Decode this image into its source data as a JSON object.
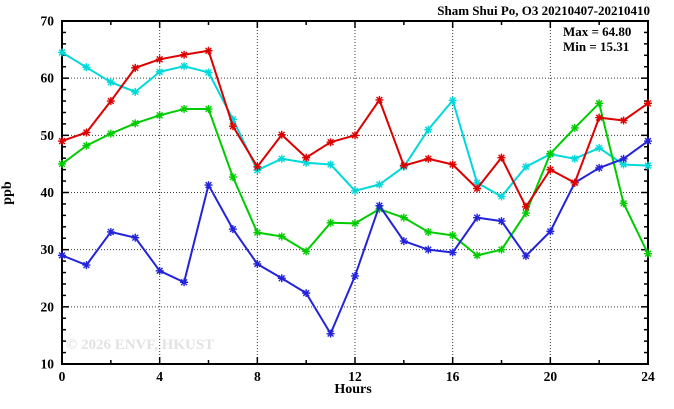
{
  "header": {
    "title": "Sham Shui Po, O3 20210407-20210410"
  },
  "stats": {
    "max_label": "Max = 64.80",
    "min_label": "Min = 15.31"
  },
  "watermark": "© 2026 ENVF, HKUST",
  "axes": {
    "xlabel": "Hours",
    "ylabel": "ppb"
  },
  "chart_data": {
    "type": "line",
    "title": "Sham Shui Po, O3 20210407-20210410",
    "xlabel": "Hours",
    "ylabel": "ppb",
    "xlim": [
      0,
      24
    ],
    "ylim": [
      10,
      70
    ],
    "x_major_ticks": [
      0,
      4,
      8,
      12,
      16,
      20,
      24
    ],
    "x_minor_ticks": [
      2,
      6,
      10,
      14,
      18,
      22
    ],
    "y_major_ticks": [
      10,
      20,
      30,
      40,
      50,
      60,
      70
    ],
    "y_minor_step": 2,
    "grid": "dotted lines at major ticks",
    "legend_position": "none",
    "marker_style": "asterisk",
    "annotations": [
      "Max = 64.80",
      "Min = 15.31"
    ],
    "x": [
      0,
      1,
      2,
      3,
      4,
      5,
      6,
      7,
      8,
      9,
      10,
      11,
      12,
      13,
      14,
      15,
      16,
      17,
      18,
      19,
      20,
      21,
      22,
      23,
      24
    ],
    "series": [
      {
        "name": "cyan-line",
        "color": "#00d9d9",
        "values": [
          64.5,
          61.9,
          59.3,
          57.6,
          61.1,
          62.1,
          61.0,
          52.8,
          43.9,
          45.9,
          45.2,
          44.9,
          40.3,
          41.4,
          44.5,
          51.0,
          56.1,
          41.7,
          39.3,
          44.5,
          46.7,
          45.9,
          47.8,
          44.9,
          44.7
        ]
      },
      {
        "name": "green-line",
        "color": "#00cc00",
        "values": [
          45.0,
          48.2,
          50.3,
          52.1,
          53.5,
          54.6,
          54.6,
          42.7,
          33.0,
          32.3,
          29.7,
          34.7,
          34.6,
          37.1,
          35.6,
          33.1,
          32.5,
          29.0,
          30.0,
          36.4,
          46.8,
          51.3,
          55.6,
          38.1,
          29.3
        ]
      },
      {
        "name": "blue-line",
        "color": "#2323d9",
        "values": [
          29.0,
          27.3,
          33.1,
          32.1,
          26.3,
          24.3,
          41.3,
          33.6,
          27.5,
          25.0,
          22.4,
          15.31,
          25.4,
          37.7,
          31.5,
          30.0,
          29.5,
          35.6,
          35.0,
          28.9,
          33.2,
          41.7,
          44.3,
          45.9,
          49.0
        ]
      },
      {
        "name": "red-line",
        "color": "#dd0000",
        "values": [
          49.0,
          50.5,
          56.0,
          61.8,
          63.3,
          64.1,
          64.8,
          51.6,
          44.5,
          50.1,
          46.1,
          48.8,
          50.0,
          56.2,
          44.7,
          45.9,
          44.9,
          40.7,
          46.1,
          37.5,
          44.0,
          41.7,
          53.1,
          52.6,
          55.6
        ]
      }
    ]
  }
}
